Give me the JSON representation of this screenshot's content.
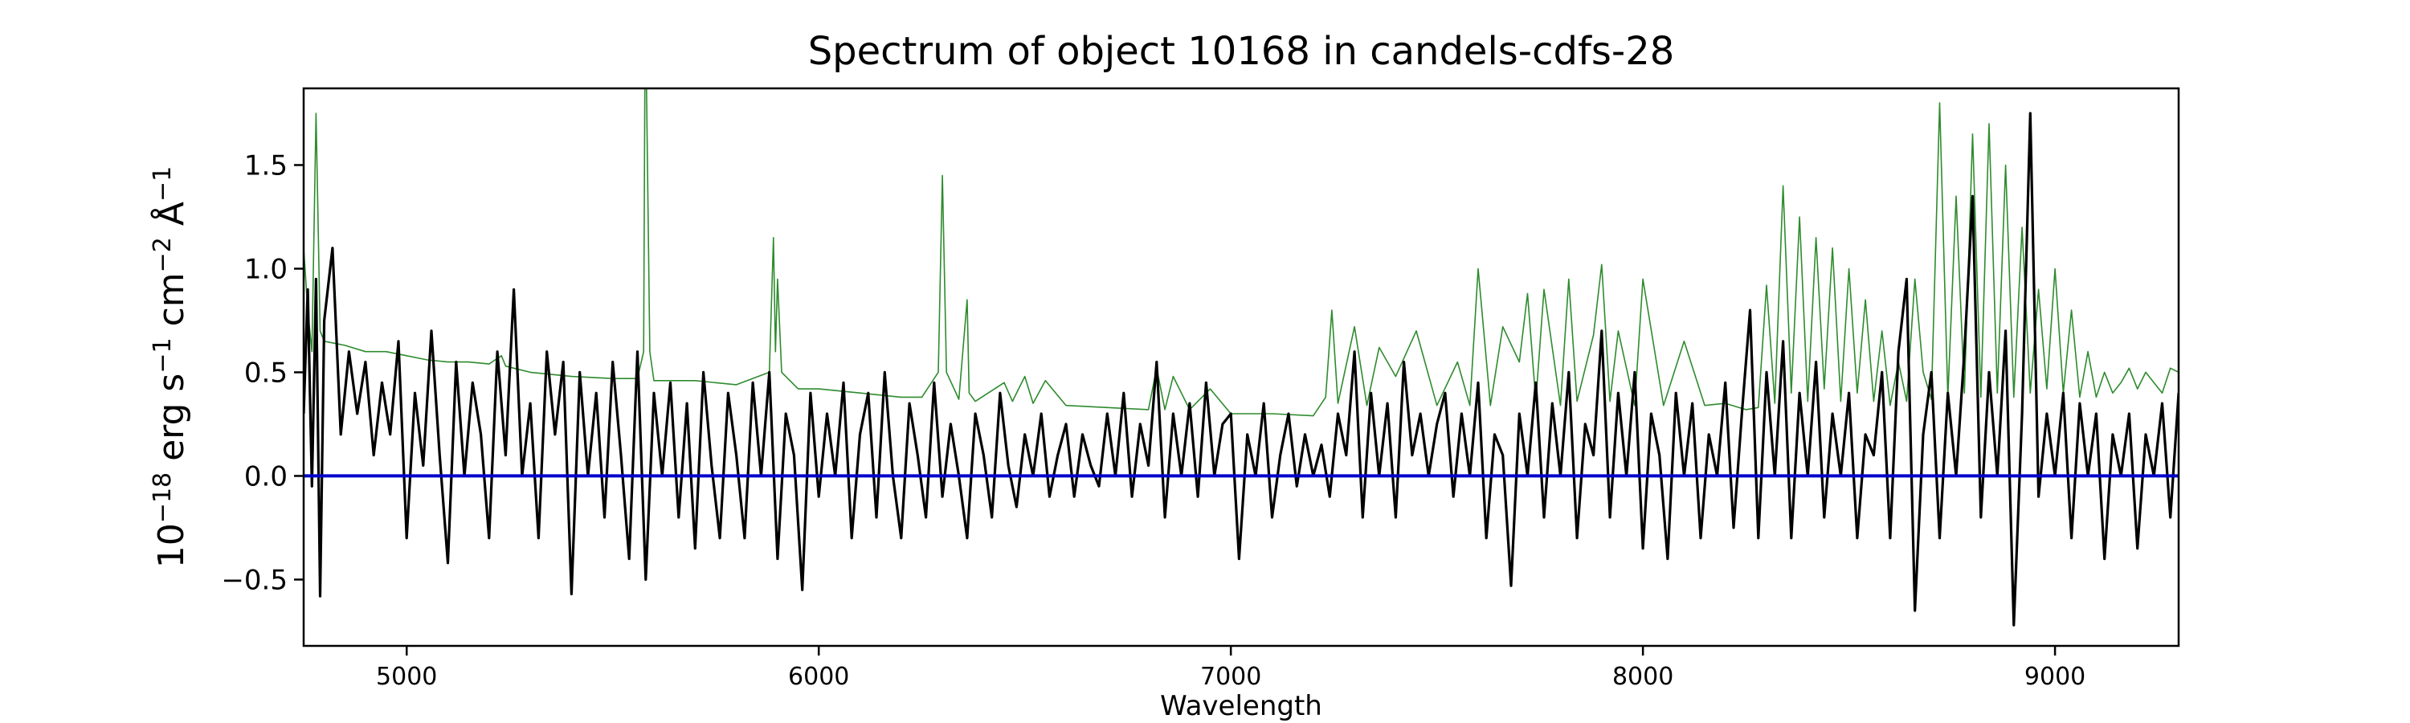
{
  "chart_data": {
    "type": "line",
    "title": "Spectrum of object 10168 in candels-cdfs-28",
    "ylabel_parts": [
      "10",
      "−18",
      " erg s",
      "−1",
      " cm",
      "−2",
      " Å",
      "−1"
    ],
    "xlabel": "Wavelength",
    "xlim": [
      4750,
      9300
    ],
    "ylim": [
      -0.82,
      1.87
    ],
    "xticks": [
      5000,
      6000,
      7000,
      8000,
      9000
    ],
    "yticks": [
      -0.5,
      0.0,
      0.5,
      1.0,
      1.5
    ],
    "ytick_labels": [
      "−0.5",
      "0.0",
      "0.5",
      "1.0",
      "1.5"
    ],
    "grid": false,
    "series": [
      {
        "role": "error",
        "color": "#2e8b2e",
        "x": [
          4750,
          4760,
          4770,
          4780,
          4790,
          4800,
          4850,
          4900,
          4950,
          5000,
          5050,
          5100,
          5150,
          5200,
          5230,
          5240,
          5260,
          5300,
          5400,
          5500,
          5560,
          5575,
          5578,
          5582,
          5590,
          5600,
          5700,
          5800,
          5880,
          5890,
          5895,
          5900,
          5910,
          5950,
          6000,
          6100,
          6200,
          6250,
          6290,
          6300,
          6310,
          6340,
          6360,
          6365,
          6380,
          6450,
          6470,
          6500,
          6520,
          6550,
          6600,
          6700,
          6800,
          6820,
          6840,
          6860,
          6900,
          6950,
          7000,
          7100,
          7200,
          7230,
          7245,
          7260,
          7300,
          7330,
          7360,
          7400,
          7450,
          7500,
          7550,
          7580,
          7600,
          7630,
          7660,
          7700,
          7720,
          7740,
          7760,
          7800,
          7820,
          7840,
          7880,
          7900,
          7920,
          7940,
          7980,
          8000,
          8050,
          8100,
          8150,
          8200,
          8250,
          8280,
          8300,
          8320,
          8340,
          8360,
          8380,
          8400,
          8420,
          8440,
          8460,
          8480,
          8500,
          8520,
          8540,
          8560,
          8580,
          8600,
          8620,
          8640,
          8660,
          8680,
          8700,
          8720,
          8740,
          8760,
          8780,
          8800,
          8820,
          8840,
          8860,
          8880,
          8900,
          8920,
          8940,
          8960,
          8980,
          9000,
          9020,
          9040,
          9060,
          9080,
          9100,
          9120,
          9140,
          9160,
          9180,
          9200,
          9220,
          9240,
          9260,
          9280,
          9300
        ],
        "y": [
          1.1,
          0.8,
          0.6,
          1.75,
          0.7,
          0.65,
          0.63,
          0.6,
          0.6,
          0.58,
          0.56,
          0.55,
          0.55,
          0.54,
          0.58,
          0.53,
          0.52,
          0.5,
          0.48,
          0.47,
          0.47,
          0.6,
          1.87,
          1.87,
          0.6,
          0.46,
          0.46,
          0.44,
          0.5,
          1.15,
          0.6,
          0.95,
          0.5,
          0.42,
          0.42,
          0.4,
          0.38,
          0.38,
          0.5,
          1.45,
          0.5,
          0.37,
          0.85,
          0.4,
          0.36,
          0.45,
          0.36,
          0.48,
          0.35,
          0.46,
          0.34,
          0.33,
          0.32,
          0.52,
          0.32,
          0.48,
          0.32,
          0.42,
          0.3,
          0.3,
          0.29,
          0.38,
          0.8,
          0.35,
          0.72,
          0.34,
          0.62,
          0.48,
          0.7,
          0.34,
          0.55,
          0.34,
          1.0,
          0.34,
          0.72,
          0.55,
          0.88,
          0.36,
          0.9,
          0.34,
          0.95,
          0.36,
          0.68,
          1.02,
          0.36,
          0.7,
          0.34,
          0.95,
          0.34,
          0.65,
          0.34,
          0.35,
          0.32,
          0.33,
          0.92,
          0.35,
          1.4,
          0.4,
          1.25,
          0.36,
          1.15,
          0.42,
          1.1,
          0.36,
          1.0,
          0.4,
          0.85,
          0.36,
          0.7,
          0.34,
          0.55,
          0.36,
          0.95,
          0.5,
          0.37,
          1.8,
          0.38,
          1.35,
          0.4,
          1.65,
          0.38,
          1.7,
          0.4,
          1.5,
          0.38,
          1.2,
          0.4,
          0.9,
          0.42,
          1.0,
          0.4,
          0.8,
          0.38,
          0.6,
          0.38,
          0.5,
          0.4,
          0.45,
          0.52,
          0.42,
          0.5,
          0.45,
          0.4,
          0.52,
          0.5
        ]
      },
      {
        "role": "flux",
        "color": "#000000",
        "x": [
          4750,
          4760,
          4770,
          4780,
          4790,
          4800,
          4820,
          4840,
          4860,
          4880,
          4900,
          4920,
          4940,
          4960,
          4980,
          5000,
          5020,
          5040,
          5060,
          5080,
          5100,
          5120,
          5140,
          5160,
          5180,
          5200,
          5220,
          5240,
          5260,
          5280,
          5300,
          5320,
          5340,
          5360,
          5380,
          5400,
          5420,
          5440,
          5460,
          5480,
          5500,
          5520,
          5540,
          5560,
          5580,
          5600,
          5620,
          5640,
          5660,
          5680,
          5700,
          5720,
          5740,
          5760,
          5780,
          5800,
          5820,
          5840,
          5860,
          5880,
          5900,
          5920,
          5940,
          5960,
          5980,
          6000,
          6020,
          6040,
          6060,
          6080,
          6100,
          6120,
          6140,
          6160,
          6180,
          6200,
          6220,
          6240,
          6260,
          6280,
          6300,
          6320,
          6340,
          6360,
          6380,
          6400,
          6420,
          6440,
          6460,
          6480,
          6500,
          6520,
          6540,
          6560,
          6580,
          6600,
          6620,
          6640,
          6660,
          6680,
          6700,
          6720,
          6740,
          6760,
          6780,
          6800,
          6820,
          6840,
          6860,
          6880,
          6900,
          6920,
          6940,
          6960,
          6980,
          7000,
          7020,
          7040,
          7060,
          7080,
          7100,
          7120,
          7140,
          7160,
          7180,
          7200,
          7220,
          7240,
          7260,
          7280,
          7300,
          7320,
          7340,
          7360,
          7380,
          7400,
          7420,
          7440,
          7460,
          7480,
          7500,
          7520,
          7540,
          7560,
          7580,
          7600,
          7620,
          7640,
          7660,
          7680,
          7700,
          7720,
          7740,
          7760,
          7780,
          7800,
          7820,
          7840,
          7860,
          7880,
          7900,
          7920,
          7940,
          7960,
          7980,
          8000,
          8020,
          8040,
          8060,
          8080,
          8100,
          8120,
          8140,
          8160,
          8180,
          8200,
          8220,
          8240,
          8260,
          8280,
          8300,
          8320,
          8340,
          8360,
          8380,
          8400,
          8420,
          8440,
          8460,
          8480,
          8500,
          8520,
          8540,
          8560,
          8580,
          8600,
          8620,
          8640,
          8660,
          8680,
          8700,
          8720,
          8740,
          8760,
          8780,
          8800,
          8820,
          8840,
          8860,
          8880,
          8900,
          8920,
          8940,
          8960,
          8980,
          9000,
          9020,
          9040,
          9060,
          9080,
          9100,
          9120,
          9140,
          9160,
          9180,
          9200,
          9220,
          9240,
          9260,
          9280,
          9300
        ],
        "y": [
          0.3,
          0.9,
          -0.05,
          0.95,
          -0.58,
          0.75,
          1.1,
          0.2,
          0.6,
          0.3,
          0.55,
          0.1,
          0.45,
          0.2,
          0.65,
          -0.3,
          0.4,
          0.05,
          0.7,
          0.1,
          -0.42,
          0.55,
          0.0,
          0.45,
          0.2,
          -0.3,
          0.6,
          0.1,
          0.9,
          0.0,
          0.35,
          -0.3,
          0.6,
          0.2,
          0.55,
          -0.57,
          0.5,
          0.0,
          0.4,
          -0.2,
          0.55,
          0.1,
          -0.4,
          0.6,
          -0.5,
          0.4,
          0.0,
          0.45,
          -0.2,
          0.35,
          -0.35,
          0.5,
          0.05,
          -0.3,
          0.4,
          0.1,
          -0.3,
          0.45,
          0.0,
          0.5,
          -0.4,
          0.3,
          0.1,
          -0.55,
          0.4,
          -0.1,
          0.3,
          0.0,
          0.45,
          -0.3,
          0.2,
          0.4,
          -0.2,
          0.5,
          0.0,
          -0.3,
          0.35,
          0.1,
          -0.2,
          0.45,
          -0.1,
          0.25,
          0.0,
          -0.3,
          0.3,
          0.1,
          -0.2,
          0.4,
          0.05,
          -0.15,
          0.2,
          0.0,
          0.3,
          -0.1,
          0.1,
          0.25,
          -0.1,
          0.2,
          0.05,
          -0.05,
          0.3,
          0.0,
          0.4,
          -0.1,
          0.25,
          0.05,
          0.55,
          -0.2,
          0.3,
          0.0,
          0.35,
          -0.1,
          0.45,
          0.0,
          0.25,
          0.3,
          -0.4,
          0.2,
          0.0,
          0.35,
          -0.2,
          0.1,
          0.3,
          -0.05,
          0.2,
          0.0,
          0.15,
          -0.1,
          0.3,
          0.1,
          0.6,
          -0.2,
          0.4,
          0.0,
          0.35,
          -0.2,
          0.55,
          0.1,
          0.3,
          0.0,
          0.25,
          0.4,
          -0.1,
          0.3,
          0.0,
          0.45,
          -0.3,
          0.2,
          0.1,
          -0.53,
          0.3,
          0.0,
          0.45,
          -0.2,
          0.35,
          0.0,
          0.5,
          -0.3,
          0.25,
          0.1,
          0.7,
          -0.2,
          0.4,
          0.0,
          0.5,
          -0.35,
          0.3,
          0.1,
          -0.4,
          0.4,
          0.0,
          0.35,
          -0.3,
          0.2,
          0.0,
          0.45,
          -0.25,
          0.3,
          0.8,
          -0.3,
          0.5,
          0.0,
          0.65,
          -0.3,
          0.4,
          0.0,
          0.55,
          -0.2,
          0.3,
          0.0,
          0.4,
          -0.3,
          0.2,
          0.1,
          0.5,
          -0.3,
          0.6,
          0.95,
          -0.65,
          0.2,
          0.5,
          -0.3,
          0.4,
          0.0,
          0.6,
          1.35,
          -0.2,
          0.5,
          0.0,
          0.7,
          -0.72,
          0.3,
          1.75,
          -0.1,
          0.3,
          0.0,
          0.4,
          -0.3,
          0.35,
          0.0,
          0.3,
          -0.4,
          0.2,
          0.0,
          0.3,
          -0.35,
          0.2,
          0.0,
          0.35,
          -0.2,
          0.4
        ]
      },
      {
        "role": "model",
        "color": "#0000cc",
        "x": [
          4750,
          9300
        ],
        "y": [
          0.0,
          0.0
        ]
      }
    ]
  }
}
